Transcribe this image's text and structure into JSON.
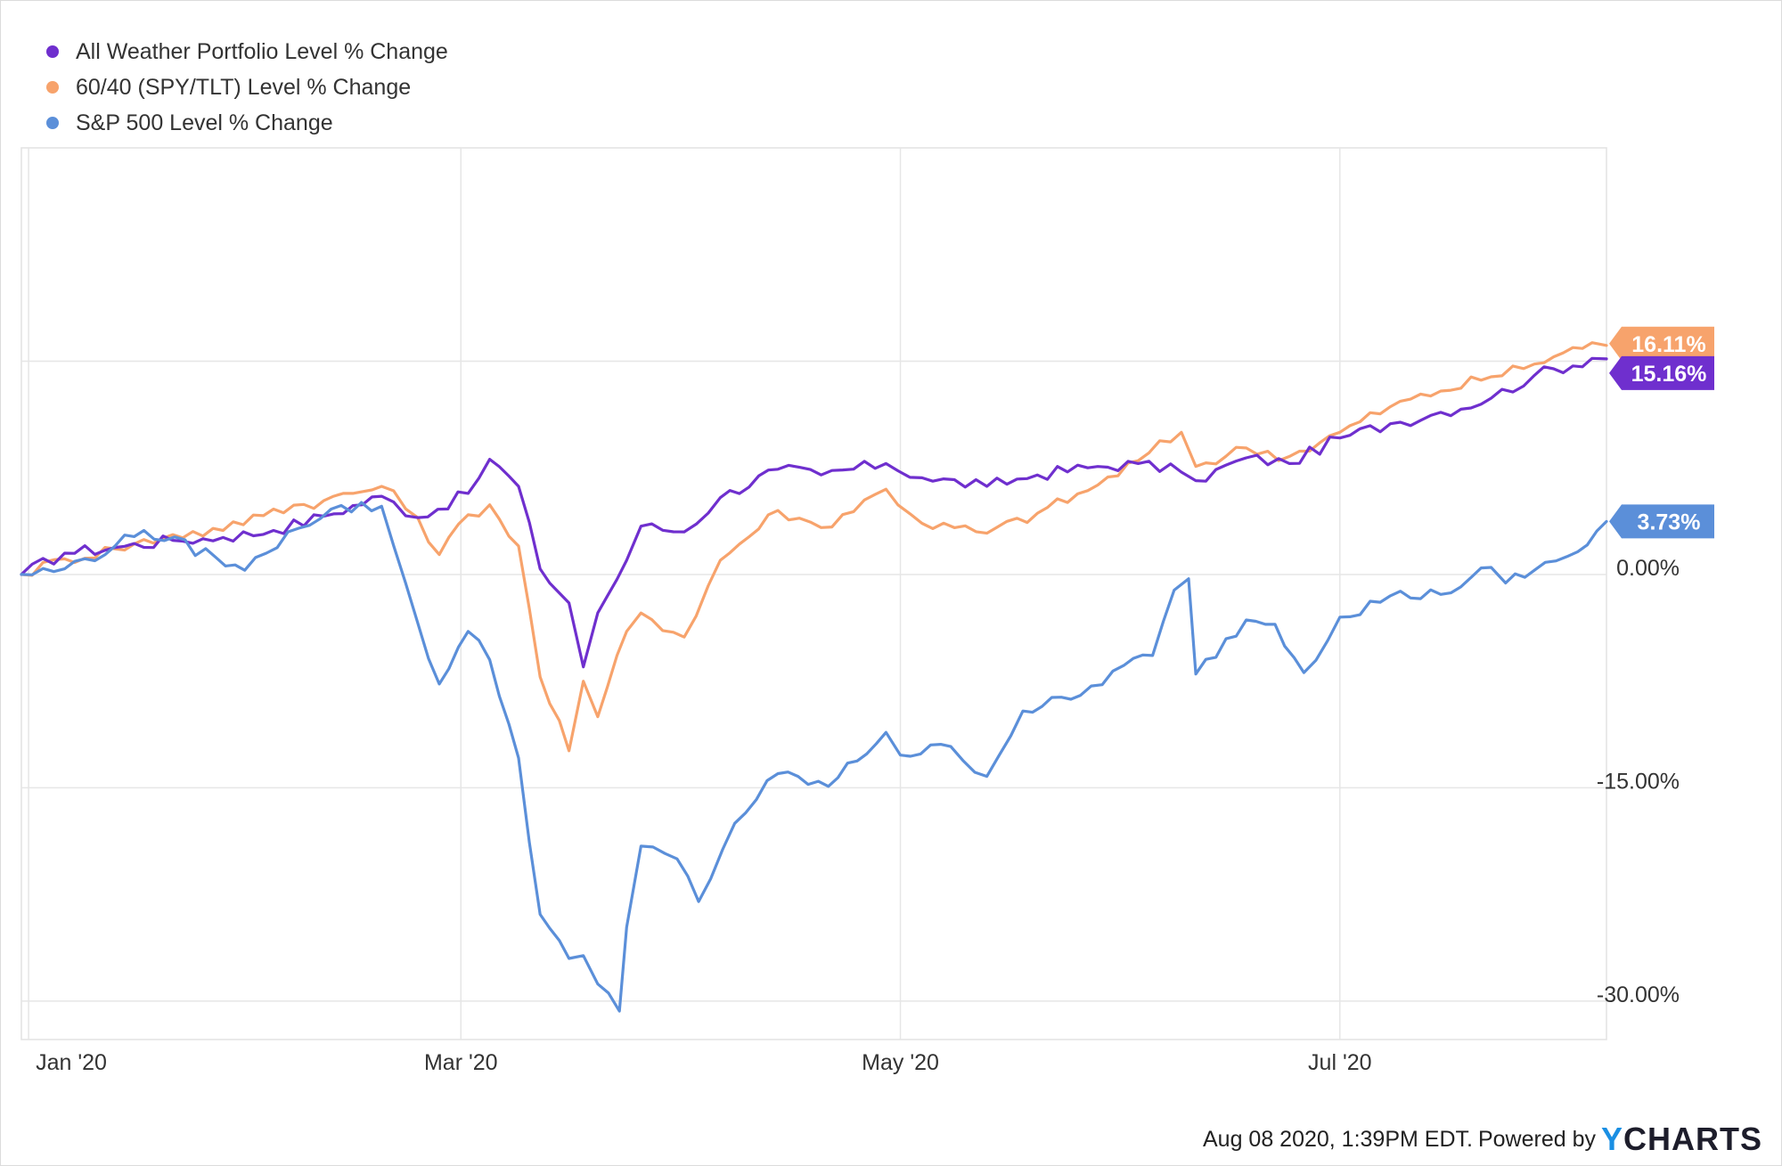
{
  "chart_data": {
    "type": "line",
    "x_axis": {
      "ticks": [
        {
          "date": "2020-01-01",
          "label": "Jan '20"
        },
        {
          "date": "2020-03-01",
          "label": "Mar '20"
        },
        {
          "date": "2020-05-01",
          "label": "May '20"
        },
        {
          "date": "2020-07-01",
          "label": "Jul '20"
        }
      ],
      "range": [
        "2019-12-31",
        "2020-08-07"
      ]
    },
    "y_axis": {
      "unit": "%",
      "ticks": [
        {
          "value": 0,
          "label": "0.00%"
        },
        {
          "value": -15,
          "label": "-15.00%"
        },
        {
          "value": -30,
          "label": "-30.00%"
        }
      ],
      "gridlines": [
        15,
        0,
        -15,
        -30
      ],
      "range": [
        -32.7,
        30
      ]
    },
    "grid": true,
    "legend_position": "top-left",
    "series": [
      {
        "name": "All Weather Portfolio Level % Change",
        "color": "#6f2fce",
        "end_label": "15.16%",
        "points": [
          [
            "2019-12-31",
            0
          ],
          [
            "2020-01-06",
            1.5
          ],
          [
            "2020-01-13",
            1.9
          ],
          [
            "2020-01-21",
            2.4
          ],
          [
            "2020-01-28",
            2.6
          ],
          [
            "2020-02-04",
            3.1
          ],
          [
            "2020-02-11",
            4.1
          ],
          [
            "2020-02-19",
            5.5
          ],
          [
            "2020-02-24",
            4.0
          ],
          [
            "2020-03-02",
            5.7
          ],
          [
            "2020-03-05",
            8.1
          ],
          [
            "2020-03-09",
            6.2
          ],
          [
            "2020-03-12",
            0.4
          ],
          [
            "2020-03-16",
            -2.0
          ],
          [
            "2020-03-18",
            -6.5
          ],
          [
            "2020-03-20",
            -2.7
          ],
          [
            "2020-03-24",
            1.0
          ],
          [
            "2020-03-26",
            3.4
          ],
          [
            "2020-04-01",
            3.0
          ],
          [
            "2020-04-06",
            5.4
          ],
          [
            "2020-04-14",
            7.4
          ],
          [
            "2020-04-20",
            7.0
          ],
          [
            "2020-04-29",
            7.8
          ],
          [
            "2020-05-04",
            6.8
          ],
          [
            "2020-05-13",
            6.2
          ],
          [
            "2020-05-20",
            7.0
          ],
          [
            "2020-05-27",
            7.5
          ],
          [
            "2020-06-03",
            7.8
          ],
          [
            "2020-06-09",
            7.2
          ],
          [
            "2020-06-11",
            6.6
          ],
          [
            "2020-06-18",
            8.2
          ],
          [
            "2020-06-24",
            7.8
          ],
          [
            "2020-07-01",
            9.6
          ],
          [
            "2020-07-08",
            10.6
          ],
          [
            "2020-07-15",
            11.4
          ],
          [
            "2020-07-22",
            12.4
          ],
          [
            "2020-07-28",
            14.0
          ],
          [
            "2020-08-05",
            15.2
          ],
          [
            "2020-08-07",
            15.16
          ]
        ]
      },
      {
        "name": "60/40 (SPY/TLT) Level % Change",
        "color": "#f7a36c",
        "end_label": "16.11%",
        "points": [
          [
            "2019-12-31",
            0
          ],
          [
            "2020-01-06",
            1.1
          ],
          [
            "2020-01-13",
            1.8
          ],
          [
            "2020-01-21",
            2.8
          ],
          [
            "2020-01-28",
            3.1
          ],
          [
            "2020-02-04",
            4.6
          ],
          [
            "2020-02-11",
            5.2
          ],
          [
            "2020-02-19",
            6.2
          ],
          [
            "2020-02-24",
            4.0
          ],
          [
            "2020-02-27",
            1.4
          ],
          [
            "2020-03-02",
            4.2
          ],
          [
            "2020-03-05",
            4.9
          ],
          [
            "2020-03-09",
            2.0
          ],
          [
            "2020-03-12",
            -7.2
          ],
          [
            "2020-03-16",
            -12.4
          ],
          [
            "2020-03-18",
            -7.5
          ],
          [
            "2020-03-20",
            -10.0
          ],
          [
            "2020-03-24",
            -4.0
          ],
          [
            "2020-03-26",
            -2.7
          ],
          [
            "2020-04-01",
            -4.4
          ],
          [
            "2020-04-06",
            1.0
          ],
          [
            "2020-04-14",
            4.5
          ],
          [
            "2020-04-20",
            3.3
          ],
          [
            "2020-04-29",
            6.0
          ],
          [
            "2020-05-04",
            3.6
          ],
          [
            "2020-05-13",
            2.9
          ],
          [
            "2020-05-20",
            4.3
          ],
          [
            "2020-05-27",
            5.9
          ],
          [
            "2020-06-03",
            8.0
          ],
          [
            "2020-06-09",
            10.0
          ],
          [
            "2020-06-11",
            7.6
          ],
          [
            "2020-06-18",
            8.9
          ],
          [
            "2020-06-24",
            8.3
          ],
          [
            "2020-07-01",
            10.0
          ],
          [
            "2020-07-08",
            11.8
          ],
          [
            "2020-07-15",
            12.9
          ],
          [
            "2020-07-22",
            13.9
          ],
          [
            "2020-07-28",
            14.8
          ],
          [
            "2020-08-05",
            16.3
          ],
          [
            "2020-08-07",
            16.11
          ]
        ]
      },
      {
        "name": "S&P 500 Level % Change",
        "color": "#5b8fd9",
        "end_label": "3.73%",
        "points": [
          [
            "2019-12-31",
            0
          ],
          [
            "2020-01-06",
            0.4
          ],
          [
            "2020-01-13",
            2.0
          ],
          [
            "2020-01-17",
            3.1
          ],
          [
            "2020-01-27",
            1.2
          ],
          [
            "2020-01-31",
            0.3
          ],
          [
            "2020-02-03",
            1.5
          ],
          [
            "2020-02-06",
            3.0
          ],
          [
            "2020-02-12",
            4.6
          ],
          [
            "2020-02-19",
            4.8
          ],
          [
            "2020-02-24",
            -3.4
          ],
          [
            "2020-02-27",
            -7.7
          ],
          [
            "2020-03-02",
            -4.0
          ],
          [
            "2020-03-05",
            -6.0
          ],
          [
            "2020-03-09",
            -12.9
          ],
          [
            "2020-03-12",
            -23.9
          ],
          [
            "2020-03-16",
            -27.0
          ],
          [
            "2020-03-18",
            -26.8
          ],
          [
            "2020-03-20",
            -28.8
          ],
          [
            "2020-03-23",
            -30.7
          ],
          [
            "2020-03-24",
            -24.8
          ],
          [
            "2020-03-26",
            -19.1
          ],
          [
            "2020-03-31",
            -20.0
          ],
          [
            "2020-04-03",
            -23.0
          ],
          [
            "2020-04-08",
            -17.5
          ],
          [
            "2020-04-14",
            -14.0
          ],
          [
            "2020-04-21",
            -14.9
          ],
          [
            "2020-04-29",
            -11.1
          ],
          [
            "2020-05-01",
            -12.7
          ],
          [
            "2020-05-08",
            -12.1
          ],
          [
            "2020-05-13",
            -14.2
          ],
          [
            "2020-05-18",
            -9.6
          ],
          [
            "2020-05-26",
            -8.5
          ],
          [
            "2020-06-01",
            -6.4
          ],
          [
            "2020-06-05",
            -5.7
          ],
          [
            "2020-06-08",
            -1.1
          ],
          [
            "2020-06-10",
            -0.3
          ],
          [
            "2020-06-11",
            -7.0
          ],
          [
            "2020-06-18",
            -3.2
          ],
          [
            "2020-06-22",
            -3.5
          ],
          [
            "2020-06-26",
            -6.9
          ],
          [
            "2020-07-01",
            -3.0
          ],
          [
            "2020-07-08",
            -1.5
          ],
          [
            "2020-07-15",
            -1.4
          ],
          [
            "2020-07-22",
            0.5
          ],
          [
            "2020-07-24",
            -0.6
          ],
          [
            "2020-07-28",
            0.3
          ],
          [
            "2020-08-03",
            1.6
          ],
          [
            "2020-08-07",
            3.73
          ]
        ]
      }
    ]
  },
  "footer": {
    "timestamp": "Aug 08 2020, 1:39PM EDT.",
    "powered_by": "Powered by",
    "brand_y": "Y",
    "brand_rest": "CHARTS"
  }
}
